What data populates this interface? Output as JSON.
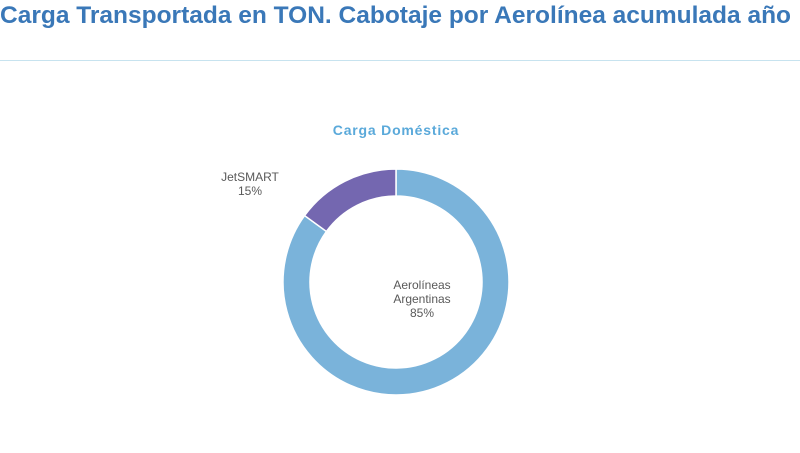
{
  "page": {
    "title": "Carga Transportada en TON. Cabotaje por Aerolínea acumulada año"
  },
  "colors": {
    "title": "#3a78b8",
    "rule": "#c7e3ef",
    "chart_title": "#5aa9da",
    "aerolineas": "#7ab3da",
    "jetsmart": "#7467b0",
    "label_text": "#595959"
  },
  "chart_data": {
    "type": "pie",
    "variant": "donut",
    "title": "Carga Doméstica",
    "slices": [
      {
        "label_lines": [
          "Aerolíneas",
          "Argentinas"
        ],
        "percent_label": "85%",
        "value": 85,
        "color": "#7ab3da"
      },
      {
        "label_lines": [
          "JetSMART"
        ],
        "percent_label": "15%",
        "value": 15,
        "color": "#7467b0"
      }
    ]
  }
}
